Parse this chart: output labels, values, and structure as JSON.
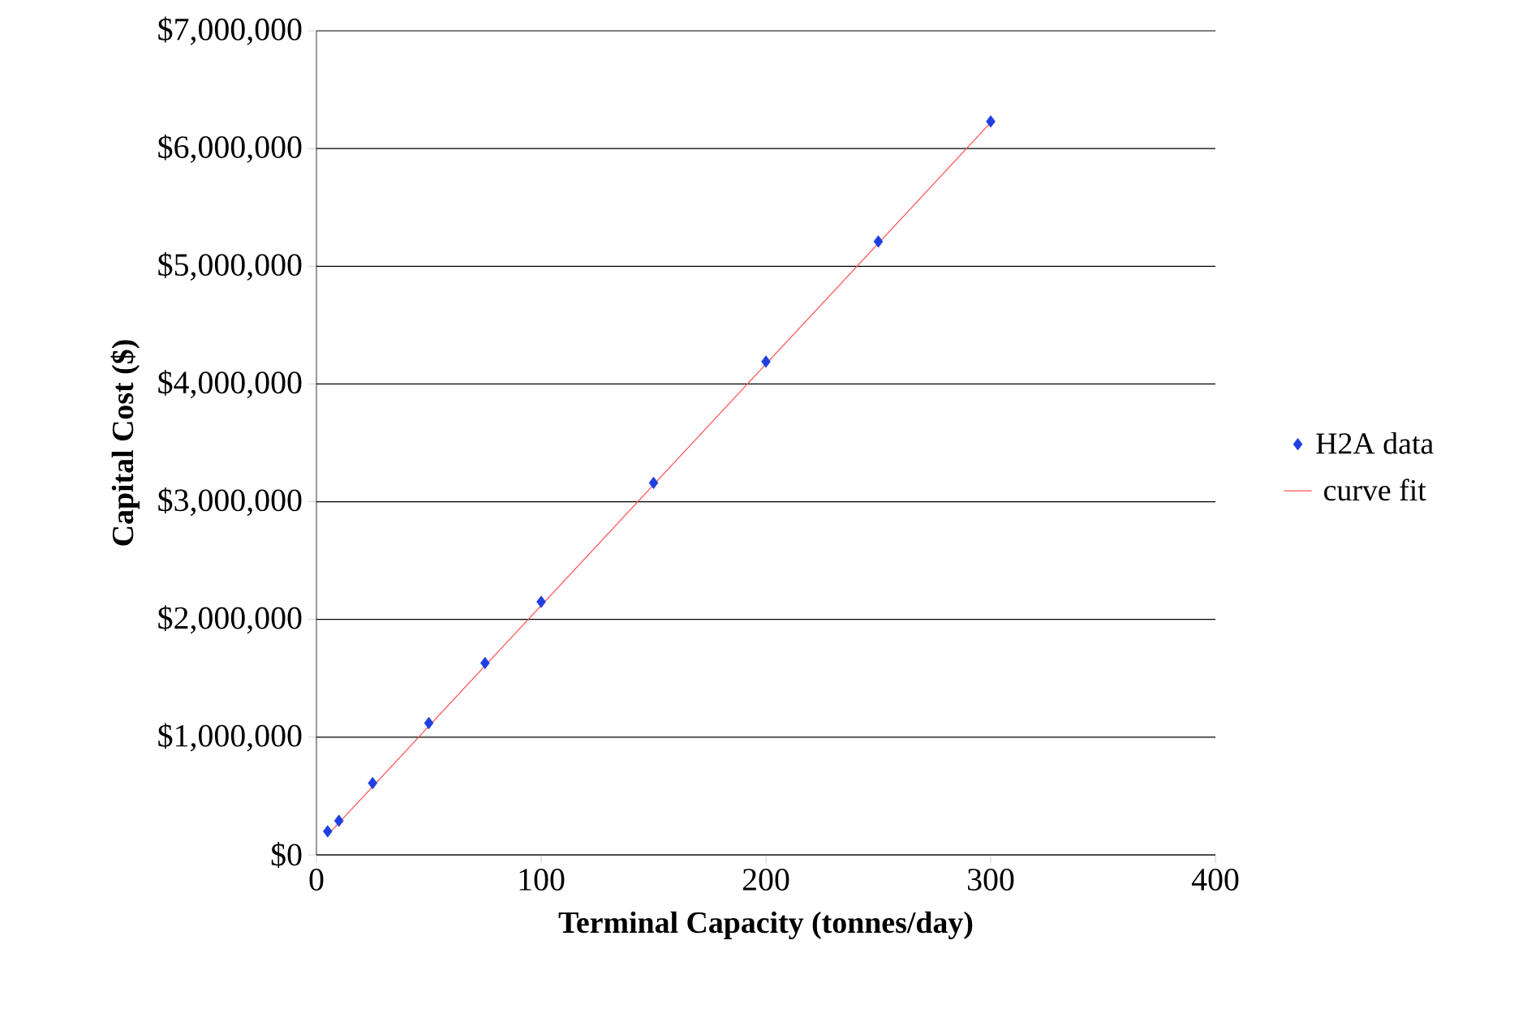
{
  "chart_data": {
    "type": "scatter",
    "xlabel": "Terminal Capacity (tonnes/day)",
    "ylabel": "Capital Cost ($)",
    "xlim": [
      0,
      400
    ],
    "xticks": [
      0,
      100,
      200,
      300,
      400
    ],
    "ylim": [
      0,
      7000000
    ],
    "yticks": [
      {
        "value": 0,
        "label": "$0"
      },
      {
        "value": 1000000,
        "label": "$1,000,000"
      },
      {
        "value": 2000000,
        "label": "$2,000,000"
      },
      {
        "value": 3000000,
        "label": "$3,000,000"
      },
      {
        "value": 4000000,
        "label": "$4,000,000"
      },
      {
        "value": 5000000,
        "label": "$5,000,000"
      },
      {
        "value": 6000000,
        "label": "$6,000,000"
      },
      {
        "value": 7000000,
        "label": "$7,000,000"
      }
    ],
    "grid": "y",
    "legend": "right",
    "marker": "diamond",
    "series": [
      {
        "name": "H2A data",
        "color": "#1f3fe0",
        "x": [
          5,
          10,
          25,
          50,
          75,
          100,
          150,
          200,
          250,
          300
        ],
        "values": [
          200000,
          290000,
          610000,
          1120000,
          1630000,
          2150000,
          3160000,
          4190000,
          5210000,
          6230000
        ]
      },
      {
        "name": "curve fit",
        "type": "line",
        "marker": "none",
        "color": "#ff5050",
        "x": [
          5,
          300
        ],
        "values": [
          170000,
          6220000
        ]
      }
    ]
  }
}
